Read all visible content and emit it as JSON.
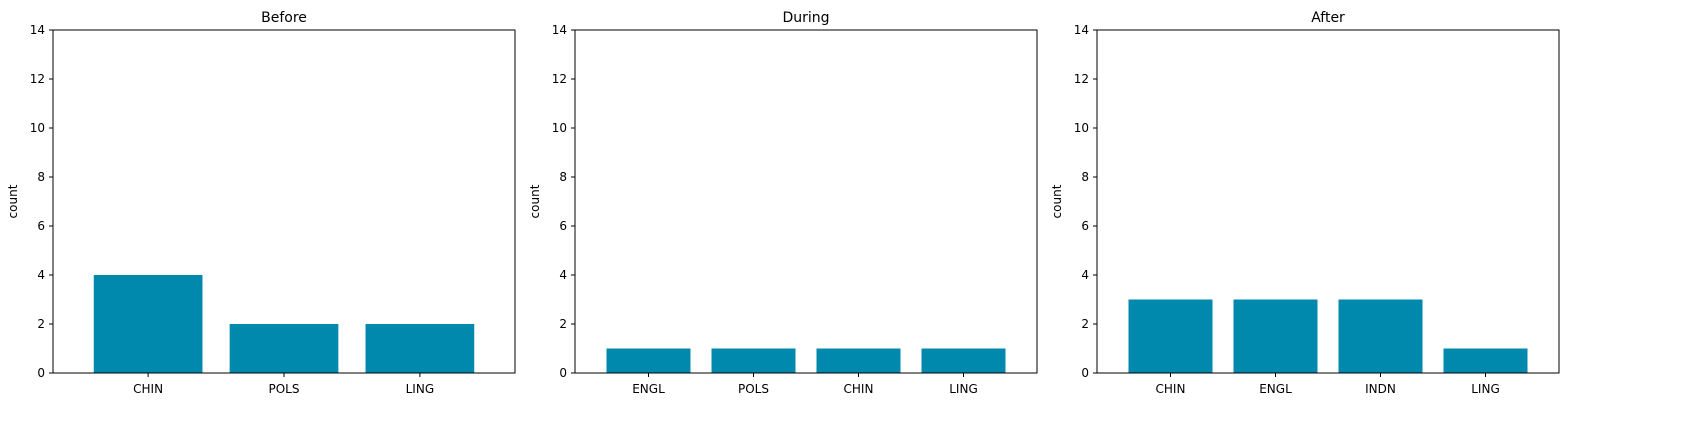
{
  "bar_color": "#0088ad",
  "chart_data": [
    {
      "type": "bar",
      "title": "Before",
      "xlabel": "",
      "ylabel": "count",
      "ylim": [
        0,
        14
      ],
      "yticks": [
        0,
        2,
        4,
        6,
        8,
        10,
        12,
        14
      ],
      "categories": [
        "CHIN",
        "POLS",
        "LING"
      ],
      "values": [
        4,
        2,
        2
      ]
    },
    {
      "type": "bar",
      "title": "During",
      "xlabel": "",
      "ylabel": "count",
      "ylim": [
        0,
        14
      ],
      "yticks": [
        0,
        2,
        4,
        6,
        8,
        10,
        12,
        14
      ],
      "categories": [
        "ENGL",
        "POLS",
        "CHIN",
        "LING"
      ],
      "values": [
        1,
        1,
        1,
        1
      ]
    },
    {
      "type": "bar",
      "title": "After",
      "xlabel": "",
      "ylabel": "count",
      "ylim": [
        0,
        14
      ],
      "yticks": [
        0,
        2,
        4,
        6,
        8,
        10,
        12,
        14
      ],
      "categories": [
        "CHIN",
        "ENGL",
        "INDN",
        "LING"
      ],
      "values": [
        3,
        3,
        3,
        1
      ]
    }
  ]
}
